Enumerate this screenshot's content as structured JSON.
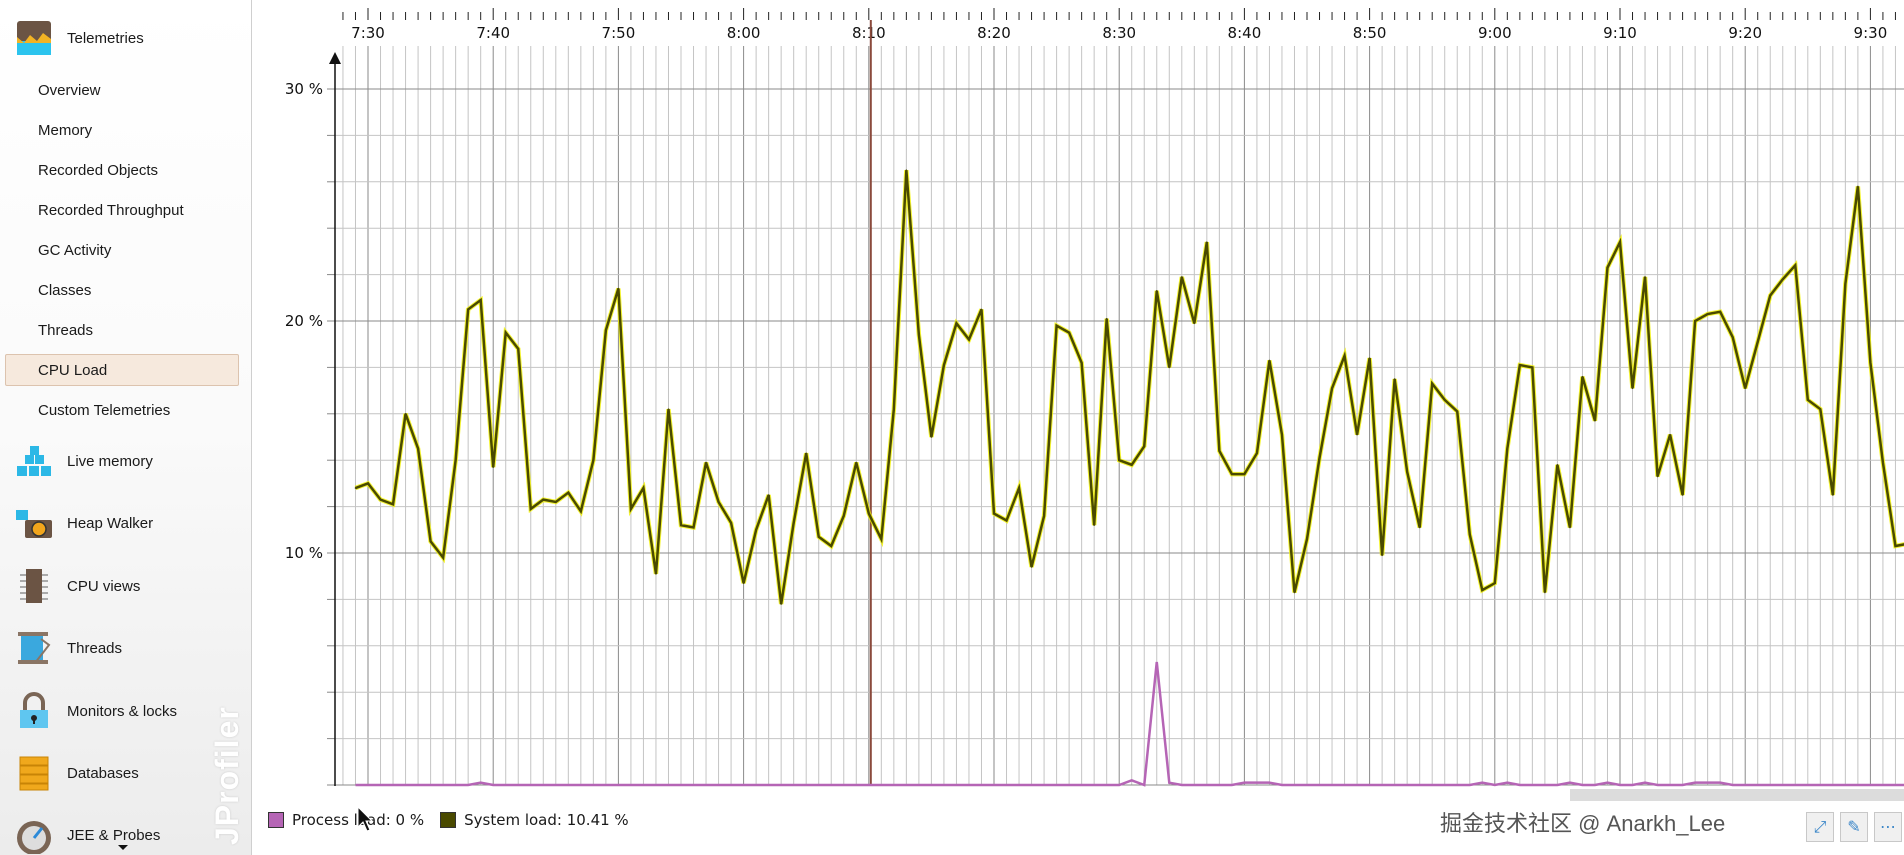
{
  "sidebar": {
    "telemetries": {
      "label": "Telemetries",
      "icon": "telemetries-icon"
    },
    "sub_items": [
      {
        "label": "Overview"
      },
      {
        "label": "Memory"
      },
      {
        "label": "Recorded Objects"
      },
      {
        "label": "Recorded Throughput"
      },
      {
        "label": "GC Activity"
      },
      {
        "label": "Classes"
      },
      {
        "label": "Threads"
      },
      {
        "label": "CPU Load",
        "active": true
      },
      {
        "label": "Custom Telemetries"
      }
    ],
    "sections": [
      {
        "label": "Live memory",
        "icon": "live-memory-icon"
      },
      {
        "label": "Heap Walker",
        "icon": "heap-walker-icon"
      },
      {
        "label": "CPU views",
        "icon": "cpu-views-icon"
      },
      {
        "label": "Threads",
        "icon": "threads-icon"
      },
      {
        "label": "Monitors & locks",
        "icon": "monitors-locks-icon"
      },
      {
        "label": "Databases",
        "icon": "databases-icon"
      },
      {
        "label": "JEE & Probes",
        "icon": "jee-probes-icon"
      }
    ],
    "logo_text": "JProfiler"
  },
  "legend": {
    "process": "Process load: 0 %",
    "system": "System load: 10.41 %"
  },
  "watermark": "掘金技术社区 @ Anarkh_Lee",
  "colors": {
    "process": "#b565b5",
    "system": "#4a4a00",
    "system_glow": "#f2f200",
    "marker": "#8b4a3c",
    "selected_bg": "#f6e9dd"
  },
  "chart_data": {
    "type": "line",
    "xlabel": "",
    "ylabel": "",
    "x_tick_labels": [
      "7:30",
      "7:40",
      "7:50",
      "8:00",
      "8:10",
      "8:20",
      "8:30",
      "8:40",
      "8:50",
      "9:00",
      "9:10",
      "9:20",
      "9:30"
    ],
    "y_tick_labels": [
      "10 %",
      "20 %",
      "30 %"
    ],
    "y_ticks": [
      10,
      20,
      30
    ],
    "ylim": [
      0,
      30
    ],
    "grid": true,
    "legend_position": "bottom-left",
    "time_marker": "8:10",
    "x": [
      "7:29",
      "7:30",
      "7:31",
      "7:32",
      "7:33",
      "7:34",
      "7:35",
      "7:36",
      "7:37",
      "7:38",
      "7:39",
      "7:40",
      "7:41",
      "7:42",
      "7:43",
      "7:44",
      "7:45",
      "7:46",
      "7:47",
      "7:48",
      "7:49",
      "7:50",
      "7:51",
      "7:52",
      "7:53",
      "7:54",
      "7:55",
      "7:56",
      "7:57",
      "7:58",
      "7:59",
      "8:00",
      "8:01",
      "8:02",
      "8:03",
      "8:04",
      "8:05",
      "8:06",
      "8:07",
      "8:08",
      "8:09",
      "8:10",
      "8:11",
      "8:12",
      "8:13",
      "8:14",
      "8:15",
      "8:16",
      "8:17",
      "8:18",
      "8:19",
      "8:20",
      "8:21",
      "8:22",
      "8:23",
      "8:24",
      "8:25",
      "8:26",
      "8:27",
      "8:28",
      "8:29",
      "8:30",
      "8:31",
      "8:32",
      "8:33",
      "8:34",
      "8:35",
      "8:36",
      "8:37",
      "8:38",
      "8:39",
      "8:40",
      "8:41",
      "8:42",
      "8:43",
      "8:44",
      "8:45",
      "8:46",
      "8:47",
      "8:48",
      "8:49",
      "8:50",
      "8:51",
      "8:52",
      "8:53",
      "8:54",
      "8:55",
      "8:56",
      "8:57",
      "8:58",
      "8:59",
      "9:00",
      "9:01",
      "9:02",
      "9:03",
      "9:04",
      "9:05",
      "9:06",
      "9:07",
      "9:08",
      "9:09",
      "9:10",
      "9:11",
      "9:12",
      "9:13",
      "9:14",
      "9:15",
      "9:16",
      "9:17",
      "9:18",
      "9:19",
      "9:20",
      "9:21",
      "9:22",
      "9:23",
      "9:24",
      "9:25",
      "9:26",
      "9:27",
      "9:28",
      "9:29",
      "9:30",
      "9:31",
      "9:32",
      "9:33"
    ],
    "series": [
      {
        "name": "System load",
        "values": [
          12.8,
          13.0,
          12.3,
          12.1,
          16.0,
          14.5,
          10.5,
          9.8,
          14.0,
          20.5,
          20.9,
          13.7,
          19.5,
          18.8,
          11.9,
          12.3,
          12.2,
          12.6,
          11.8,
          14.0,
          19.6,
          21.4,
          11.9,
          12.8,
          9.1,
          16.2,
          11.2,
          11.1,
          13.9,
          12.2,
          11.3,
          8.7,
          11.0,
          12.5,
          7.8,
          11.3,
          14.3,
          10.7,
          10.3,
          11.6,
          13.9,
          11.7,
          10.6,
          16.2,
          26.5,
          19.4,
          15.0,
          18.1,
          19.9,
          19.2,
          20.5,
          11.7,
          11.4,
          12.8,
          9.4,
          11.6,
          19.8,
          19.5,
          18.2,
          11.2,
          20.1,
          14.0,
          13.8,
          14.6,
          21.3,
          18.0,
          21.9,
          19.9,
          23.4,
          14.4,
          13.4,
          13.4,
          14.3,
          18.3,
          15.1,
          8.3,
          10.6,
          14.1,
          17.1,
          18.5,
          15.1,
          18.4,
          9.9,
          17.5,
          13.5,
          11.1,
          17.3,
          16.6,
          16.1,
          10.8,
          8.4,
          8.7,
          14.5,
          18.1,
          18.0,
          8.3,
          13.8,
          11.1,
          17.6,
          15.7,
          22.3,
          23.4,
          17.1,
          21.9,
          13.3,
          15.1,
          12.5,
          20.0,
          20.3,
          20.4,
          19.3,
          17.1,
          19.1,
          21.1,
          21.8,
          22.4,
          16.6,
          16.2,
          12.5,
          21.6,
          25.8,
          18.2,
          13.9,
          10.3,
          10.4
        ]
      },
      {
        "name": "Process load",
        "values": [
          0,
          0,
          0,
          0,
          0,
          0,
          0,
          0,
          0,
          0,
          0.1,
          0,
          0,
          0,
          0,
          0,
          0,
          0,
          0,
          0,
          0,
          0,
          0,
          0,
          0,
          0,
          0,
          0,
          0,
          0,
          0,
          0,
          0,
          0,
          0,
          0,
          0,
          0,
          0,
          0,
          0,
          0,
          0,
          0,
          0,
          0,
          0,
          0,
          0,
          0,
          0,
          0,
          0,
          0,
          0,
          0,
          0,
          0,
          0,
          0,
          0,
          0,
          0.2,
          0,
          5.3,
          0.1,
          0,
          0,
          0,
          0,
          0,
          0.1,
          0.1,
          0.1,
          0,
          0,
          0,
          0,
          0,
          0,
          0,
          0,
          0,
          0,
          0,
          0,
          0,
          0,
          0,
          0,
          0.1,
          0,
          0.1,
          0,
          0,
          0,
          0,
          0.1,
          0,
          0,
          0.1,
          0,
          0,
          0.1,
          0,
          0,
          0,
          0.1,
          0.1,
          0.1,
          0,
          0,
          0,
          0,
          0,
          0,
          0,
          0,
          0,
          0,
          0,
          0,
          0,
          0,
          0
        ]
      }
    ]
  }
}
